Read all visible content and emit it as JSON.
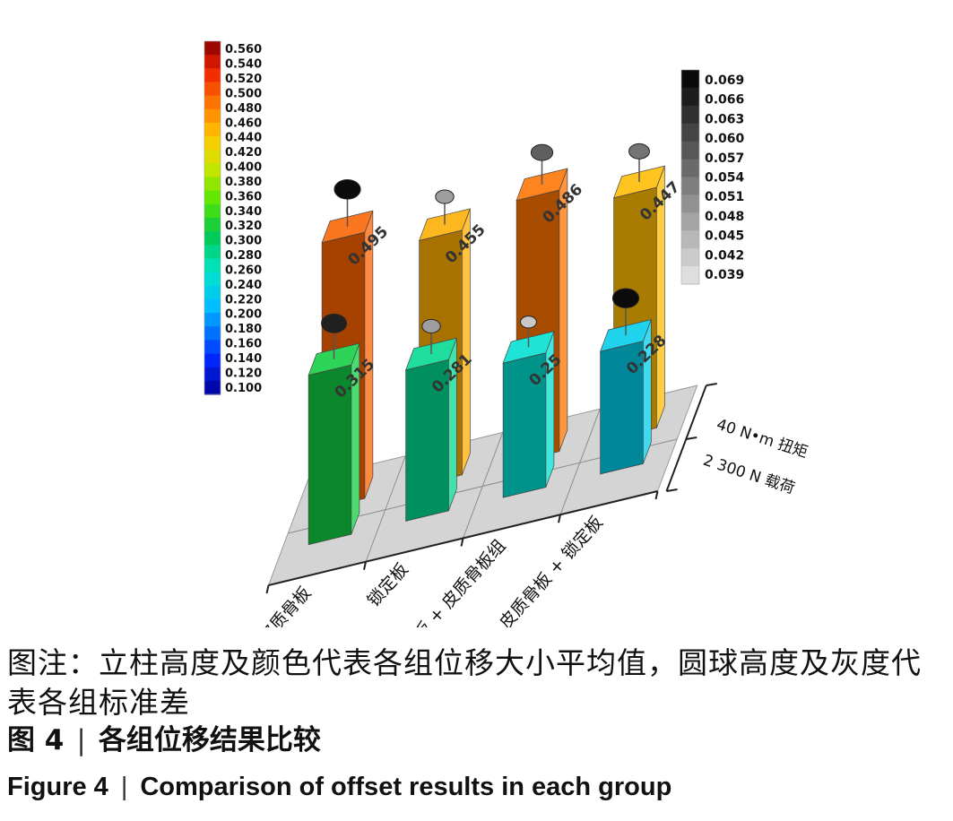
{
  "chart_data": {
    "type": "bar",
    "categories": [
      "皮质骨板 + 锁定板",
      "皮质骨板 + 皮质骨板组",
      "锁定板",
      "皮质骨板"
    ],
    "series": [
      {
        "name": "2 300 N 载荷",
        "values": [
          0.228,
          0.25,
          0.281,
          0.315
        ],
        "labels": [
          "0.228",
          "0.25",
          "0.281",
          "0.315"
        ]
      },
      {
        "name": "40 N•m 扭矩",
        "values": [
          0.447,
          0.486,
          0.455,
          0.495
        ],
        "labels": [
          "0.447",
          "0.486",
          "0.455",
          "0.495"
        ]
      }
    ],
    "std_dev": {
      "2 300 N 载荷": [
        0.069,
        0.042,
        0.048,
        0.066
      ],
      "40 N•m 扭矩": [
        0.054,
        0.057,
        0.048,
        0.069
      ]
    },
    "color_scale": {
      "ticks": [
        "0.560",
        "0.540",
        "0.520",
        "0.500",
        "0.480",
        "0.460",
        "0.440",
        "0.420",
        "0.400",
        "0.380",
        "0.360",
        "0.340",
        "0.320",
        "0.300",
        "0.280",
        "0.260",
        "0.240",
        "0.220",
        "0.200",
        "0.180",
        "0.160",
        "0.140",
        "0.120",
        "0.100"
      ],
      "range": [
        0.09,
        0.57
      ]
    },
    "gray_scale": {
      "ticks": [
        "0.069",
        "0.066",
        "0.063",
        "0.060",
        "0.057",
        "0.054",
        "0.051",
        "0.048",
        "0.045",
        "0.042",
        "0.039"
      ],
      "range": [
        0.0375,
        0.0705
      ]
    },
    "grid": true
  },
  "caption": {
    "note": "图注：立柱高度及颜色代表各组位移大小平均值，圆球高度及灰度代表各组标准差",
    "figure_zh_label": "图 4",
    "figure_zh_title": "各组位移结果比较",
    "figure_en_label": "Figure 4",
    "figure_en_title": "Comparison of offset results in each group",
    "separator": "|"
  }
}
